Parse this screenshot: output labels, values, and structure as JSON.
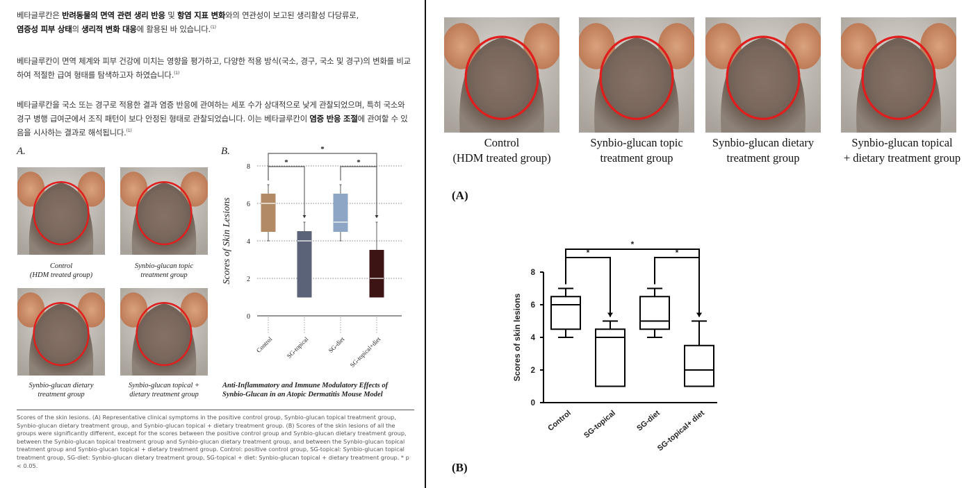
{
  "left": {
    "para1": {
      "t1": "베타글루칸은 ",
      "b1": "반려동물의 면역 관련 생리 반응",
      "t2": " 및 ",
      "b2": "항염 지표 변화",
      "t3": "와의 연관성이 보고된 생리활성 다당류로,",
      "b3": "염증성 피부 상태",
      "t4": "의 ",
      "b4": "생리적 변화 대응",
      "t5": "에 활용된 바 있습니다.",
      "ref": "(1)"
    },
    "para2": {
      "t1": "베타글루칸이 면역 체계와 피부 건강에 미치는 영향을 평가하고, 다양한 적용 방식(국소, 경구, 국소 및 경구)의 변화를 비교하여 적절한 급여 형태를 탐색하고자 하였습니다.",
      "ref": "(1)"
    },
    "para3": {
      "t1": "베타글루칸을 국소 또는 경구로 적용한 결과 염증 반응에 관여하는 세포 수가 상대적으로 낮게 관찰되었으며, 특히 국소와 경구 병행 급여군에서 조직 패턴이 보다 안정된 형태로 관찰되었습니다. 이는 베타글루칸이 ",
      "b1": "염증 반응 조절",
      "t2": "에 관여할 수 있음을 시사하는 결과로 해석됩니다.",
      "ref": "(1)"
    },
    "panel_a_label": "A.",
    "panel_b_label": "B.",
    "photo_captions": [
      {
        "l1": "Control",
        "l2": "(HDM treated group)"
      },
      {
        "l1": "Synbio-glucan topic",
        "l2": "treatment group"
      },
      {
        "l1": "Synbio-glucan dietary",
        "l2": "treatment group"
      },
      {
        "l1": "Synbio-glucan topical +",
        "l2": "dietary treatment group"
      }
    ],
    "figure_title": {
      "l1": "Anti-Inflammatory and Immune Modulatory Effects of",
      "l2": "Synbio-Glucan in an Atopic Dermatitis Mouse Model"
    },
    "caption": "Scores of the skin lesions. (A) Representative clinical symptoms in the positive control group, Synbio-glucan topical treatment group, Synbio-glucan dietary treatment group, and Synbio-glucan topical + dietary treatment group. (B) Scores of the skin lesions of all the groups were significantly different, except for the scores between the positive control group and Synbio-glucan dietary treatment group, between the Synbio-glucan topical treatment group and Synbio-glucan dietary treatment group, and between the Synbio-glucan topical treatment group and Synbio-glucan topical + dietary treatment group. Control: positive control group, SG-topical: Synbio-glucan topical treatment group, SG-diet: Synbio-glucan dietary treatment group, SG-topical + diet: Synbio-glucan topical + dietary treatment group. * p < 0.05."
  },
  "right": {
    "photo_captions": [
      {
        "l1": "Control",
        "l2": "(HDM treated group)"
      },
      {
        "l1": "Synbio-glucan topic",
        "l2": "treatment group"
      },
      {
        "l1": "Synbio-glucan dietary",
        "l2": "treatment group"
      },
      {
        "l1": "Synbio-glucan topical",
        "l2": "+ dietary treatment group"
      }
    ],
    "label_a": "(A)",
    "label_b": "(B)"
  },
  "colors": {
    "control": "#b38a66",
    "sg_topical": "#5a6377",
    "sg_diet": "#8ea6c6",
    "sg_topical_diet": "#3d1414",
    "circle": "#e01e1e"
  },
  "chart_data": [
    {
      "type": "box",
      "title": "",
      "ylabel": "Scores of Skin Lesions",
      "xlabel": "",
      "ylim": [
        0,
        8
      ],
      "yticks": [
        "0",
        "2",
        "4",
        "6",
        "8"
      ],
      "grid": true,
      "categories": [
        "Control",
        "SG-topical",
        "SG-diet",
        "SG-topical+diet"
      ],
      "boxes": [
        {
          "min": 4,
          "q1": 4.5,
          "median": 6,
          "q3": 6.5,
          "max": 7
        },
        {
          "min": 1,
          "q1": 1,
          "median": 4,
          "q3": 4.5,
          "max": 5
        },
        {
          "min": 4,
          "q1": 4.5,
          "median": 5,
          "q3": 6.5,
          "max": 7
        },
        {
          "min": 1,
          "q1": 1,
          "median": 2,
          "q3": 3.5,
          "max": 5
        }
      ],
      "significance": [
        {
          "from": "Control",
          "to": "SG-topical",
          "label": "*"
        },
        {
          "from": "SG-diet",
          "to": "SG-topical+diet",
          "label": "*"
        },
        {
          "from": "Control",
          "to": "SG-topical+diet",
          "label": "*"
        }
      ]
    },
    {
      "type": "box",
      "title": "",
      "ylabel": "Scores of skin lesions",
      "xlabel": "",
      "ylim": [
        0,
        8
      ],
      "yticks": [
        "0",
        "2",
        "4",
        "6",
        "8"
      ],
      "grid": false,
      "categories": [
        "Control",
        "SG-topical",
        "SG-diet",
        "SG-topical+ diet"
      ],
      "boxes": [
        {
          "min": 4,
          "q1": 4.5,
          "median": 6,
          "q3": 6.5,
          "max": 7
        },
        {
          "min": 1,
          "q1": 1,
          "median": 4,
          "q3": 4.5,
          "max": 5
        },
        {
          "min": 4,
          "q1": 4.5,
          "median": 5,
          "q3": 6.5,
          "max": 7
        },
        {
          "min": 1,
          "q1": 1,
          "median": 2,
          "q3": 3.5,
          "max": 5
        }
      ],
      "significance": [
        {
          "from": "Control",
          "to": "SG-topical",
          "label": "*"
        },
        {
          "from": "SG-diet",
          "to": "SG-topical+ diet",
          "label": "*"
        },
        {
          "from": "Control",
          "to": "SG-topical+ diet",
          "label": "*"
        }
      ]
    }
  ]
}
